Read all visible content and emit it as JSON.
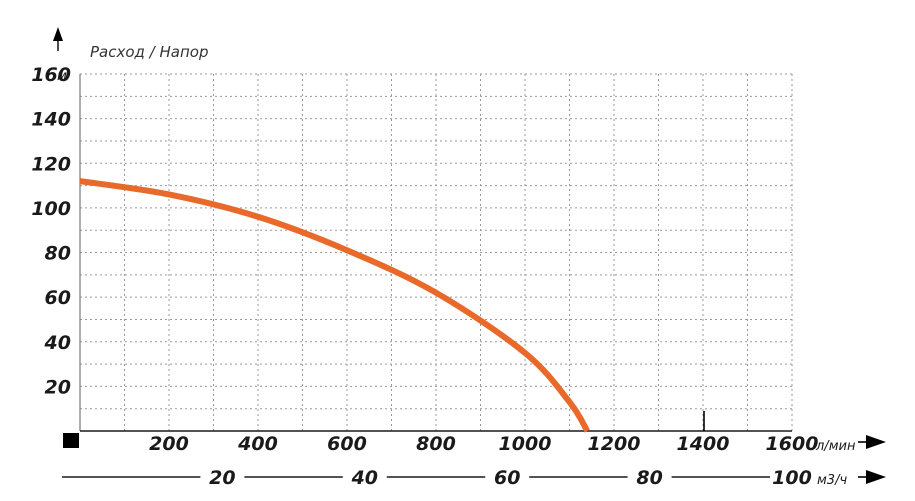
{
  "chart_data": {
    "type": "line",
    "ylabel": "Расход / Напор",
    "y_unit": "м",
    "x_unit": "л/мин",
    "x2_unit": "м3/ч",
    "ylim": [
      0,
      160
    ],
    "xlim": [
      0,
      1600
    ],
    "x2lim": [
      0,
      100
    ],
    "y_ticks": [
      "20",
      "40",
      "60",
      "80",
      "100",
      "120",
      "140",
      "160"
    ],
    "x_ticks": [
      "200",
      "400",
      "600",
      "800",
      "1000",
      "1200",
      "1400",
      "1600"
    ],
    "x2_ticks": [
      "20",
      "40",
      "60",
      "80",
      "100"
    ],
    "grid": true,
    "series": [
      {
        "color": "#e8692a",
        "x": [
          0,
          200,
          400,
          600,
          800,
          1000,
          1100,
          1140
        ],
        "y": [
          112,
          106,
          96,
          81,
          62,
          35,
          13,
          0
        ]
      }
    ]
  }
}
